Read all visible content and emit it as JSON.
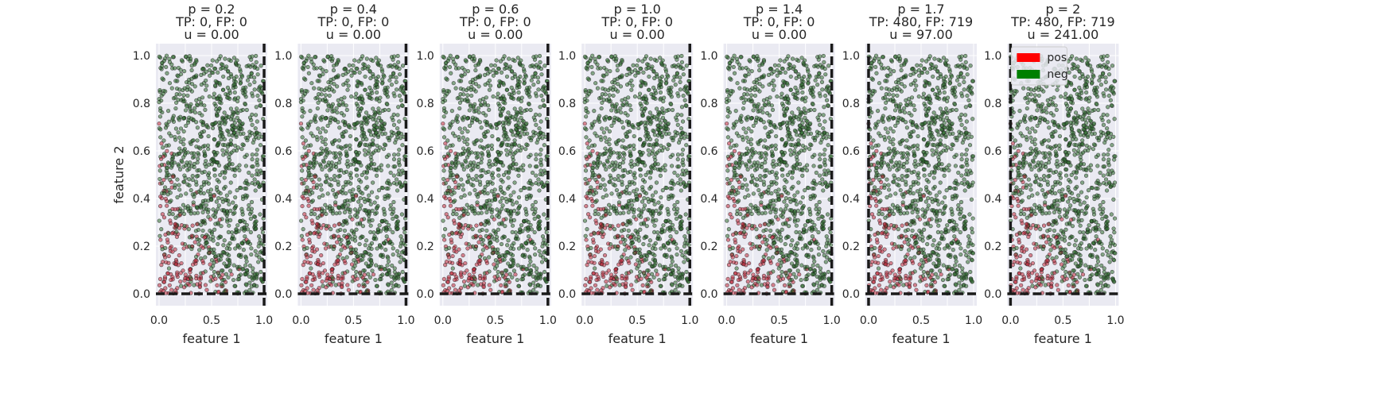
{
  "chart_data": {
    "type": "scatter",
    "xlabel": "feature 1",
    "ylabel": "feature 2",
    "xlim": [
      -0.03,
      1.03
    ],
    "ylim": [
      -0.05,
      1.05
    ],
    "xticks": [
      "0.0",
      "0.5",
      "1.0"
    ],
    "yticks": [
      "0.0",
      "0.2",
      "0.4",
      "0.6",
      "0.8",
      "1.0"
    ],
    "grid": true,
    "legend": {
      "placement": "top-left",
      "entries": [
        {
          "label": "pos",
          "color": "#ff0000"
        },
        {
          "label": "neg",
          "color": "#008000"
        }
      ]
    },
    "point_colors": {
      "pos": "#c0283a",
      "neg": "#2e6b2e"
    },
    "n_points": 1199,
    "points_seed": 7,
    "panels": [
      {
        "title": [
          "p = 0.2",
          "TP: 0, FP: 0",
          "u = 0.00"
        ],
        "threshold_x": 1.0,
        "threshold_y": 0.0
      },
      {
        "title": [
          "p = 0.4",
          "TP: 0, FP: 0",
          "u = 0.00"
        ],
        "threshold_x": 1.0,
        "threshold_y": 0.0
      },
      {
        "title": [
          "p = 0.6",
          "TP: 0, FP: 0",
          "u = 0.00"
        ],
        "threshold_x": 1.0,
        "threshold_y": 0.0
      },
      {
        "title": [
          "p = 1.0",
          "TP: 0, FP: 0",
          "u = 0.00"
        ],
        "threshold_x": 1.0,
        "threshold_y": 0.0
      },
      {
        "title": [
          "p = 1.4",
          "TP: 0, FP: 0",
          "u = 0.00"
        ],
        "threshold_x": 1.0,
        "threshold_y": 0.0
      },
      {
        "title": [
          "p = 1.7",
          "TP: 480, FP: 719",
          "u = 97.00"
        ],
        "threshold_x": 0.0,
        "threshold_y": 0.0
      },
      {
        "title": [
          "p = 2",
          "TP: 480, FP: 719",
          "u = 241.00"
        ],
        "threshold_x": 0.0,
        "threshold_y": 0.0
      }
    ]
  }
}
